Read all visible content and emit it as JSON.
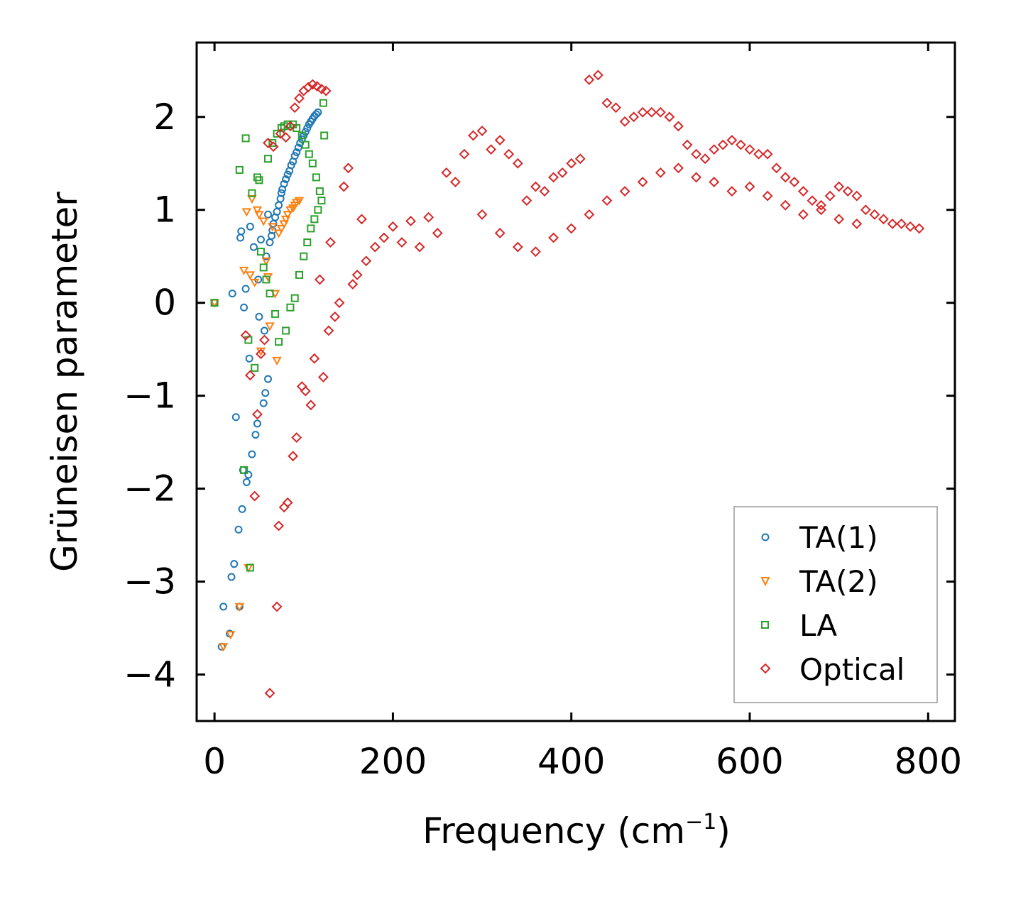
{
  "chart_data": {
    "type": "scatter",
    "title": "",
    "xlabel_main": "Frequency (cm",
    "xlabel_sup": "−1",
    "xlabel_close": ")",
    "ylabel": "Grüneisen parameter",
    "xlim": [
      -20,
      830
    ],
    "ylim": [
      -4.5,
      2.8
    ],
    "xticks": [
      0,
      200,
      400,
      600,
      800
    ],
    "yticks": [
      -4,
      -3,
      -2,
      -1,
      0,
      1,
      2
    ],
    "xtick_labels": [
      "0",
      "200",
      "400",
      "600",
      "800"
    ],
    "ytick_labels": [
      "−4",
      "−3",
      "−2",
      "−1",
      "0",
      "1",
      "2"
    ],
    "grid": false,
    "legend_position": "lower-right",
    "series": [
      {
        "name": "TA(1)",
        "marker": "circle",
        "color": "#1f77b4",
        "x": [
          0,
          8,
          10,
          17,
          19,
          20,
          22,
          24,
          27,
          28,
          29,
          30,
          31,
          32,
          33,
          35,
          36,
          38,
          39,
          40,
          42,
          44,
          46,
          48,
          49,
          50,
          52,
          55,
          56,
          57,
          58,
          60,
          60,
          62,
          64,
          65,
          66,
          68,
          70,
          72,
          74,
          75,
          76,
          78,
          80,
          82,
          84,
          86,
          88,
          90,
          92,
          94,
          96,
          98,
          100,
          102,
          104,
          106,
          108,
          110,
          112,
          114,
          116
        ],
        "y": [
          0,
          -3.7,
          -3.27,
          -3.56,
          -2.95,
          0.1,
          -2.81,
          -1.23,
          -2.44,
          -3.27,
          0.7,
          0.77,
          -2.22,
          -1.8,
          -0.05,
          0.15,
          -1.93,
          -1.85,
          -0.6,
          0.82,
          -1.63,
          0.6,
          -1.42,
          -1.3,
          0.25,
          -0.15,
          0.68,
          -1.08,
          -0.3,
          -0.97,
          0.5,
          -0.82,
          0.95,
          0.65,
          0.72,
          0.78,
          0.85,
          0.92,
          0.98,
          1.05,
          1.12,
          1.18,
          1.22,
          1.28,
          1.33,
          1.38,
          1.42,
          1.48,
          1.52,
          1.58,
          1.62,
          1.67,
          1.72,
          1.76,
          1.8,
          1.84,
          1.88,
          1.92,
          1.95,
          1.98,
          2.01,
          2.03,
          2.05
        ]
      },
      {
        "name": "TA(2)",
        "marker": "triangle-down",
        "color": "#ff7f0e",
        "x": [
          0,
          10,
          18,
          28,
          33,
          36,
          38,
          40,
          42,
          45,
          48,
          50,
          52,
          55,
          58,
          60,
          62,
          65,
          68,
          70,
          72,
          75,
          78,
          80,
          82,
          85,
          88,
          90,
          92,
          95
        ],
        "y": [
          0,
          -3.7,
          -3.57,
          -3.27,
          0.35,
          0.98,
          -2.85,
          0.3,
          1.12,
          0.22,
          1.0,
          0.95,
          -0.52,
          0.88,
          0.45,
          0.28,
          -0.25,
          0.82,
          0.1,
          -0.62,
          0.75,
          0.8,
          0.85,
          0.9,
          0.95,
          1.0,
          1.02,
          1.05,
          1.08,
          1.1
        ]
      },
      {
        "name": "LA",
        "marker": "square",
        "color": "#2ca02c",
        "x": [
          0,
          28,
          33,
          35,
          38,
          40,
          42,
          45,
          48,
          50,
          52,
          55,
          58,
          60,
          62,
          65,
          68,
          70,
          72,
          75,
          78,
          80,
          82,
          85,
          88,
          90,
          92,
          95,
          98,
          100,
          102,
          104,
          106,
          108,
          110,
          112,
          114,
          116,
          118,
          120,
          122,
          123
        ],
        "y": [
          0,
          1.43,
          -1.8,
          1.77,
          -0.4,
          -2.85,
          1.18,
          -0.7,
          1.35,
          1.32,
          0.55,
          0.38,
          0.25,
          1.55,
          0.1,
          1.72,
          -0.12,
          1.82,
          -0.42,
          1.88,
          1.9,
          -0.3,
          1.92,
          -0.05,
          1.92,
          0.05,
          1.88,
          0.3,
          1.8,
          0.5,
          1.7,
          0.65,
          1.6,
          0.8,
          1.5,
          0.9,
          1.35,
          1.0,
          1.2,
          1.1,
          2.15,
          1.8
        ]
      },
      {
        "name": "Optical",
        "marker": "diamond",
        "color": "#d62728",
        "x": [
          35,
          40,
          45,
          48,
          52,
          56,
          60,
          62,
          66,
          70,
          72,
          74,
          78,
          80,
          82,
          85,
          88,
          90,
          92,
          95,
          98,
          100,
          102,
          105,
          108,
          110,
          112,
          115,
          118,
          120,
          122,
          125,
          128,
          130,
          135,
          140,
          145,
          150,
          155,
          160,
          165,
          170,
          180,
          190,
          200,
          210,
          220,
          230,
          240,
          250,
          260,
          270,
          280,
          290,
          300,
          310,
          320,
          330,
          340,
          350,
          360,
          370,
          380,
          390,
          400,
          410,
          420,
          430,
          440,
          450,
          460,
          470,
          480,
          490,
          500,
          510,
          520,
          530,
          540,
          550,
          560,
          570,
          580,
          590,
          600,
          610,
          620,
          630,
          640,
          650,
          660,
          670,
          680,
          690,
          700,
          710,
          720,
          730,
          740,
          750,
          760,
          770,
          780,
          790,
          300,
          320,
          340,
          360,
          380,
          400,
          420,
          440,
          460,
          480,
          500,
          520,
          540,
          560,
          580,
          600,
          620,
          640,
          660,
          680,
          700,
          720
        ],
        "y": [
          -0.35,
          -0.78,
          -2.08,
          -1.2,
          -0.55,
          -0.4,
          1.72,
          -4.2,
          1.68,
          -3.27,
          -2.4,
          1.82,
          -2.2,
          1.78,
          -2.15,
          1.9,
          -1.65,
          2.1,
          -1.45,
          2.2,
          -0.9,
          2.28,
          -0.95,
          2.32,
          -1.1,
          2.35,
          -0.6,
          2.33,
          0.25,
          2.3,
          -0.8,
          2.28,
          -0.3,
          0.65,
          -0.15,
          0.0,
          1.25,
          1.45,
          0.2,
          0.3,
          0.9,
          0.45,
          0.6,
          0.7,
          0.82,
          0.65,
          0.88,
          0.6,
          0.92,
          0.75,
          1.4,
          1.3,
          1.6,
          1.8,
          1.85,
          1.65,
          1.75,
          1.6,
          1.5,
          1.1,
          1.25,
          1.2,
          1.35,
          1.4,
          1.5,
          1.55,
          2.4,
          2.45,
          2.15,
          2.1,
          1.95,
          2.0,
          2.05,
          2.05,
          2.05,
          2.0,
          1.9,
          1.7,
          1.6,
          1.55,
          1.65,
          1.7,
          1.75,
          1.7,
          1.65,
          1.6,
          1.6,
          1.45,
          1.35,
          1.3,
          1.2,
          1.1,
          1.05,
          1.15,
          1.25,
          1.2,
          1.15,
          1.0,
          0.95,
          0.9,
          0.85,
          0.85,
          0.82,
          0.8,
          0.95,
          0.75,
          0.6,
          0.55,
          0.7,
          0.8,
          0.95,
          1.1,
          1.2,
          1.3,
          1.4,
          1.45,
          1.35,
          1.3,
          1.2,
          1.25,
          1.15,
          1.05,
          0.95,
          1.0,
          0.9,
          0.85
        ]
      }
    ]
  }
}
